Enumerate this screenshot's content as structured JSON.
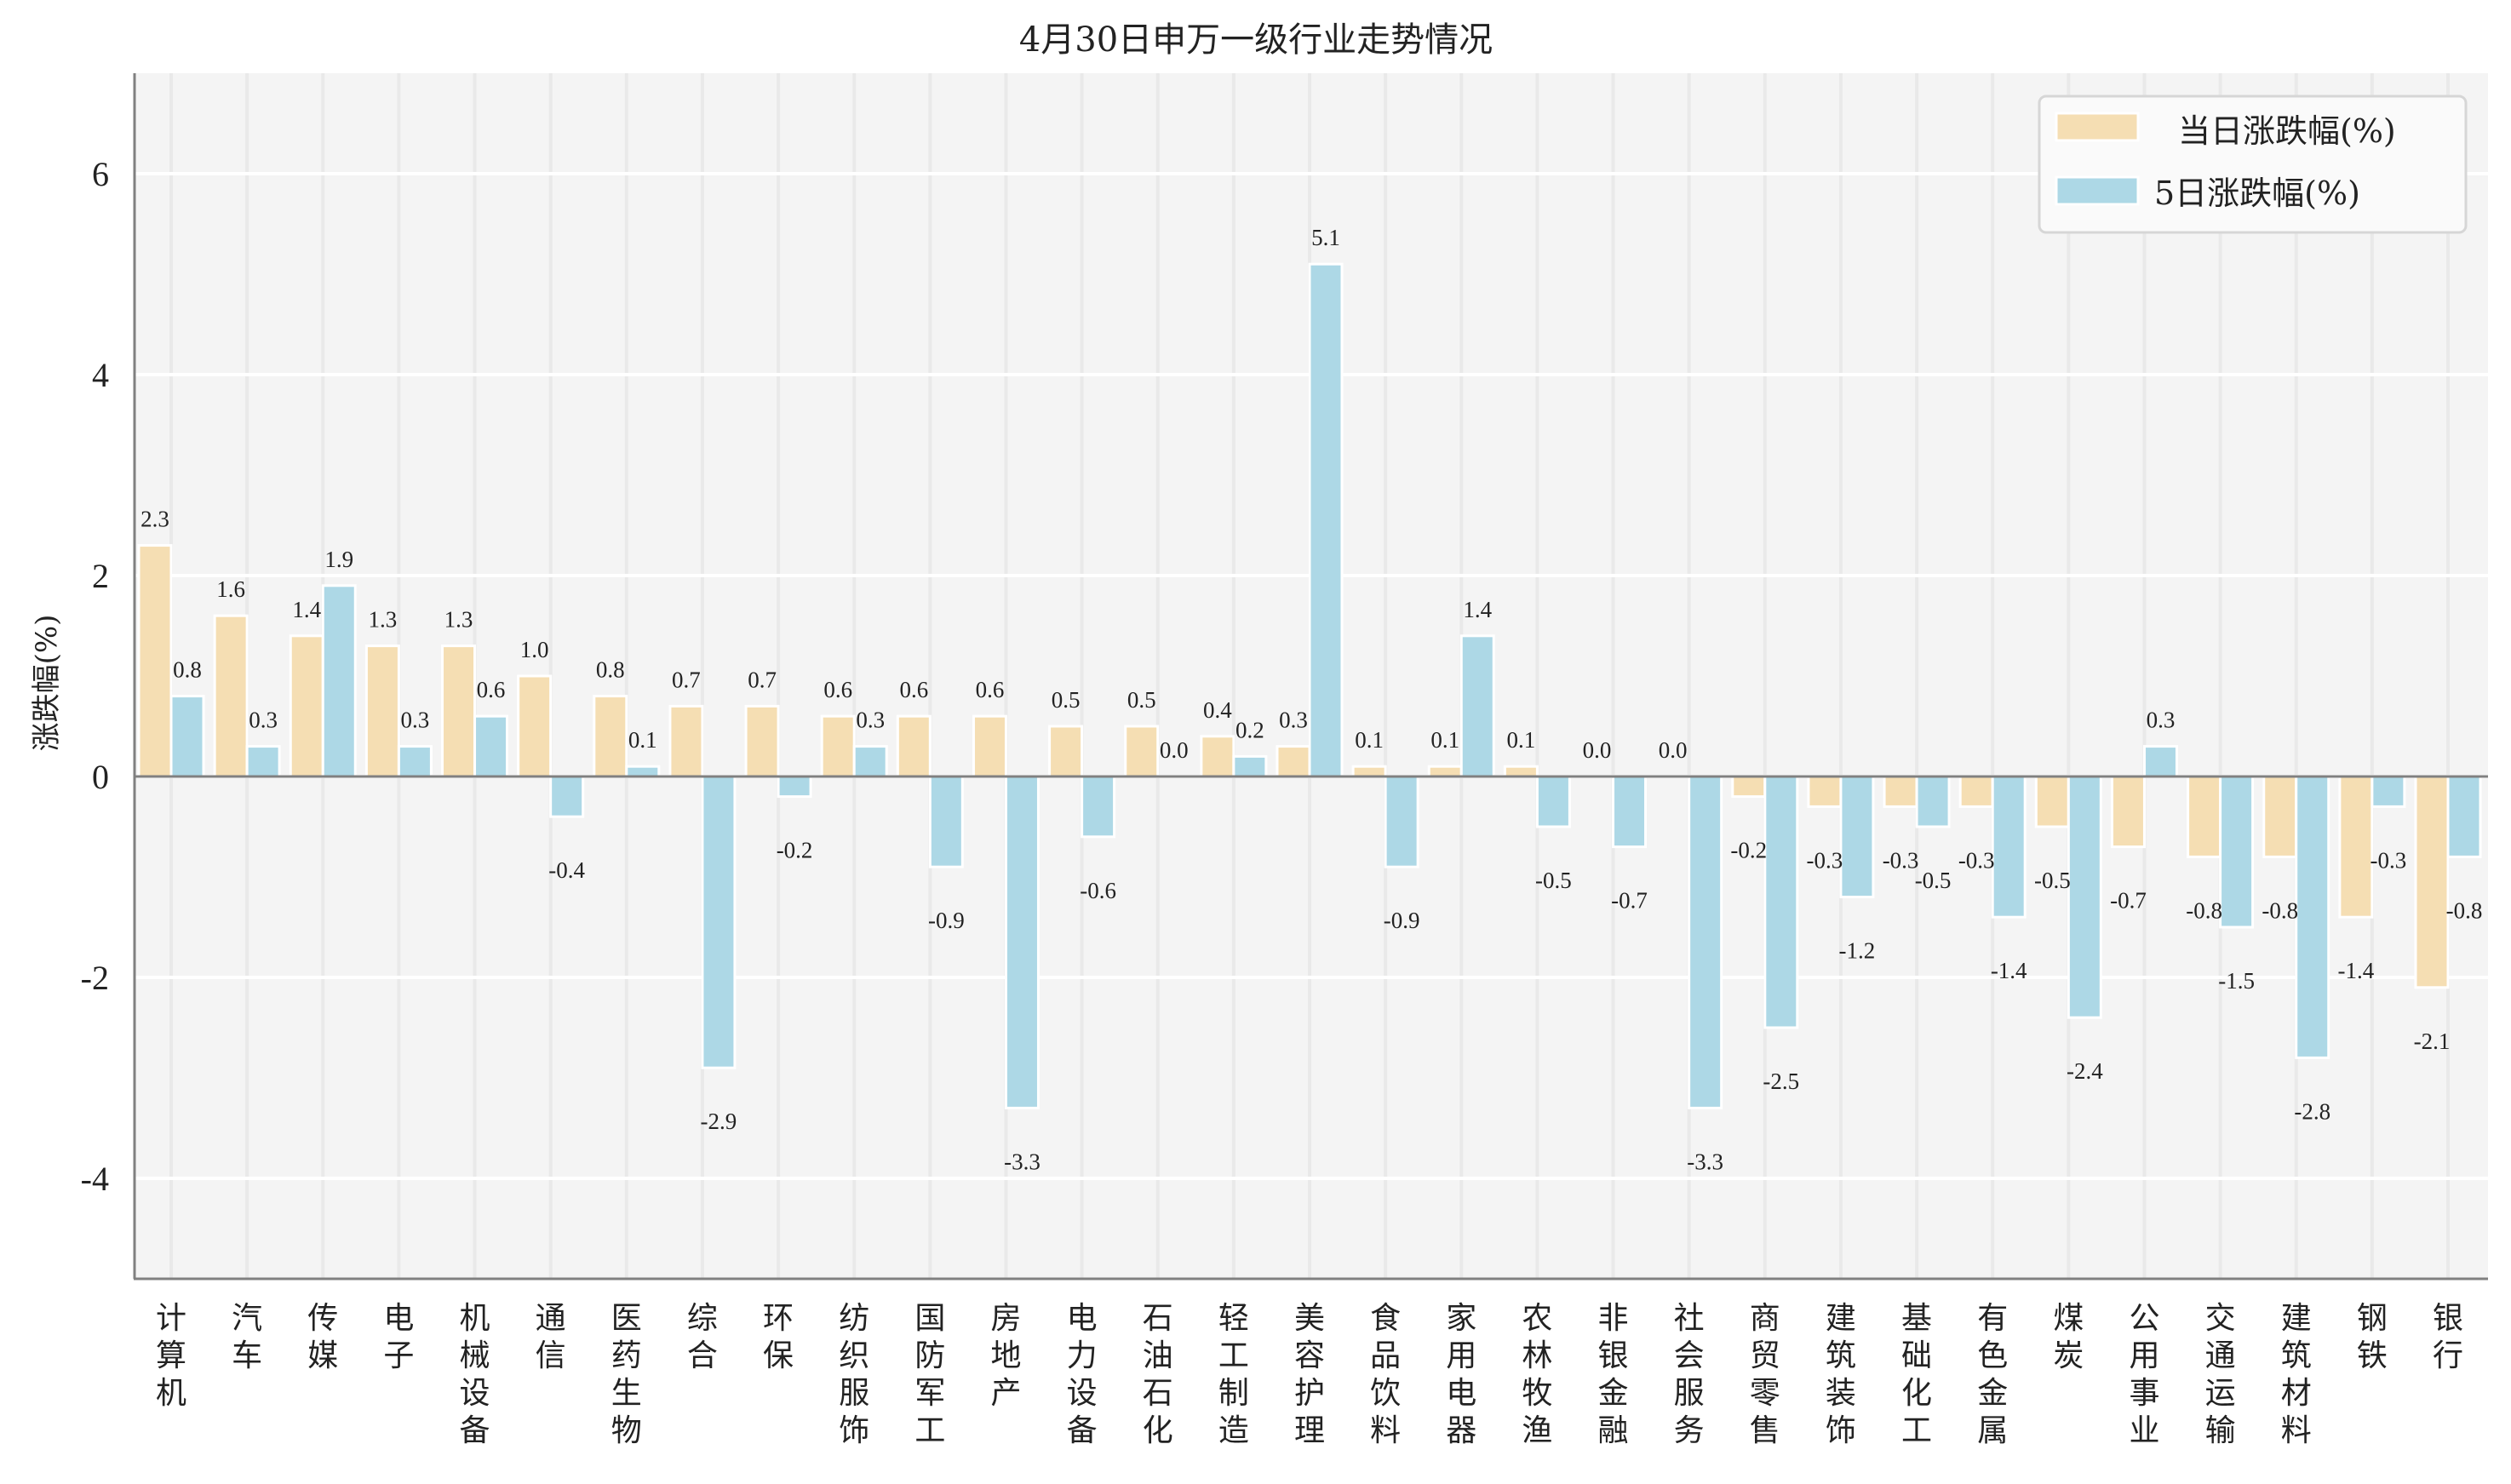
{
  "chart_data": {
    "type": "bar",
    "title": "4月30日申万一级行业走势情况",
    "xlabel": "",
    "ylabel": "涨跌幅(%)",
    "ylim": [
      -5,
      7
    ],
    "yticks": [
      -4,
      -2,
      0,
      2,
      4,
      6
    ],
    "ytick_labels": [
      "-4",
      "-2",
      "0",
      "2",
      "4",
      "6"
    ],
    "grid": true,
    "legend_position": "top-right",
    "colors": {
      "daily": "#F5DEB3",
      "five_day": "#ADD8E6",
      "plot_bg": "#F4F4F4",
      "axis": "#808080"
    },
    "categories": [
      "计算机",
      "汽车",
      "传媒",
      "电子",
      "机械设备",
      "通信",
      "医药生物",
      "综合",
      "环保",
      "纺织服饰",
      "国防军工",
      "房地产",
      "电力设备",
      "石油石化",
      "轻工制造",
      "美容护理",
      "食品饮料",
      "家用电器",
      "农林牧渔",
      "非银金融",
      "社会服务",
      "商贸零售",
      "建筑装饰",
      "基础化工",
      "有色金属",
      "煤炭",
      "公用事业",
      "交通运输",
      "建筑材料",
      "钢铁",
      "银行"
    ],
    "series": [
      {
        "name": "当日涨跌幅(%)",
        "color": "#F5DEB3",
        "values": [
          2.3,
          1.6,
          1.4,
          1.3,
          1.3,
          1.0,
          0.8,
          0.7,
          0.7,
          0.6,
          0.6,
          0.6,
          0.5,
          0.5,
          0.4,
          0.3,
          0.1,
          0.1,
          0.1,
          0.0,
          0.0,
          -0.2,
          -0.3,
          -0.3,
          -0.3,
          -0.5,
          -0.7,
          -0.8,
          -0.8,
          -1.4,
          -2.1
        ]
      },
      {
        "name": "5日涨跌幅(%)",
        "color": "#ADD8E6",
        "values": [
          0.8,
          0.3,
          1.9,
          0.3,
          0.6,
          -0.4,
          0.1,
          -2.9,
          -0.2,
          0.3,
          -0.9,
          -3.3,
          -0.6,
          0.0,
          0.2,
          5.1,
          -0.9,
          1.4,
          -0.5,
          -0.7,
          -3.3,
          -2.5,
          -1.2,
          -0.5,
          -1.4,
          -2.4,
          0.3,
          -1.5,
          -2.8,
          -0.3,
          -0.8
        ]
      }
    ]
  }
}
